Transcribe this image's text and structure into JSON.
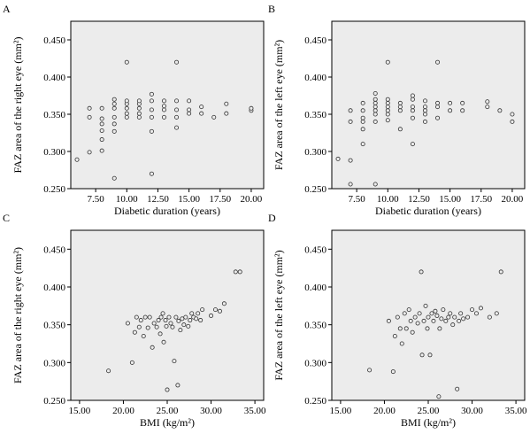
{
  "colors": {
    "plot_bg": "#ececec",
    "axis": "#000000",
    "marker_stroke": "#333333",
    "marker_fill": "#ececec"
  },
  "chart_data": [
    {
      "type": "scatter",
      "panel_label": "A",
      "xlabel": "Diabetic duration (years)",
      "ylabel": "FAZ area of the right eye (mm²)",
      "xlim": [
        5.5,
        21
      ],
      "ylim": [
        0.25,
        0.475
      ],
      "xticks": [
        7.5,
        10,
        12.5,
        15,
        17.5,
        20
      ],
      "xtick_labels": [
        "7.50",
        "10.00",
        "12.50",
        "15.00",
        "17.50",
        "20.00"
      ],
      "yticks": [
        0.25,
        0.3,
        0.35,
        0.4,
        0.45
      ],
      "ytick_labels": [
        "0.250",
        "0.300",
        "0.350",
        "0.400",
        "0.450"
      ],
      "points": [
        [
          6,
          0.289
        ],
        [
          7,
          0.299
        ],
        [
          7,
          0.346
        ],
        [
          7,
          0.358
        ],
        [
          8,
          0.301
        ],
        [
          8,
          0.316
        ],
        [
          8,
          0.328
        ],
        [
          8,
          0.337
        ],
        [
          8,
          0.344
        ],
        [
          8,
          0.358
        ],
        [
          9,
          0.264
        ],
        [
          9,
          0.327
        ],
        [
          9,
          0.337
        ],
        [
          9,
          0.346
        ],
        [
          9,
          0.358
        ],
        [
          9,
          0.364
        ],
        [
          9,
          0.37
        ],
        [
          10,
          0.346
        ],
        [
          10,
          0.351
        ],
        [
          10,
          0.358
        ],
        [
          10,
          0.364
        ],
        [
          10,
          0.368
        ],
        [
          10,
          0.42
        ],
        [
          11,
          0.346
        ],
        [
          11,
          0.351
        ],
        [
          11,
          0.358
        ],
        [
          11,
          0.364
        ],
        [
          11,
          0.368
        ],
        [
          12,
          0.27
        ],
        [
          12,
          0.327
        ],
        [
          12,
          0.346
        ],
        [
          12,
          0.356
        ],
        [
          12,
          0.368
        ],
        [
          12,
          0.377
        ],
        [
          13,
          0.346
        ],
        [
          13,
          0.356
        ],
        [
          13,
          0.361
        ],
        [
          13,
          0.368
        ],
        [
          14,
          0.332
        ],
        [
          14,
          0.346
        ],
        [
          14,
          0.356
        ],
        [
          14,
          0.368
        ],
        [
          14,
          0.42
        ],
        [
          15,
          0.351
        ],
        [
          15,
          0.356
        ],
        [
          15,
          0.368
        ],
        [
          16,
          0.351
        ],
        [
          16,
          0.36
        ],
        [
          17,
          0.346
        ],
        [
          18,
          0.351
        ],
        [
          18,
          0.364
        ],
        [
          20,
          0.355
        ],
        [
          20,
          0.358
        ]
      ]
    },
    {
      "type": "scatter",
      "panel_label": "B",
      "xlabel": "Diabetic duration (years)",
      "ylabel": "FAZ area of the left eye (mm²)",
      "xlim": [
        5.5,
        21
      ],
      "ylim": [
        0.25,
        0.475
      ],
      "xticks": [
        7.5,
        10,
        12.5,
        15,
        17.5,
        20
      ],
      "xtick_labels": [
        "7.50",
        "10.00",
        "12.50",
        "15.00",
        "17.50",
        "20.00"
      ],
      "yticks": [
        0.25,
        0.3,
        0.35,
        0.4,
        0.45
      ],
      "ytick_labels": [
        "0.250",
        "0.300",
        "0.350",
        "0.400",
        "0.450"
      ],
      "points": [
        [
          6,
          0.29
        ],
        [
          7,
          0.256
        ],
        [
          7,
          0.288
        ],
        [
          7,
          0.34
        ],
        [
          7,
          0.355
        ],
        [
          8,
          0.31
        ],
        [
          8,
          0.33
        ],
        [
          8,
          0.34
        ],
        [
          8,
          0.345
        ],
        [
          8,
          0.355
        ],
        [
          8,
          0.365
        ],
        [
          9,
          0.256
        ],
        [
          9,
          0.34
        ],
        [
          9,
          0.35
        ],
        [
          9,
          0.355
        ],
        [
          9,
          0.36
        ],
        [
          9,
          0.365
        ],
        [
          9,
          0.37
        ],
        [
          9,
          0.378
        ],
        [
          10,
          0.342
        ],
        [
          10,
          0.35
        ],
        [
          10,
          0.355
        ],
        [
          10,
          0.36
        ],
        [
          10,
          0.365
        ],
        [
          10,
          0.37
        ],
        [
          10,
          0.42
        ],
        [
          11,
          0.33
        ],
        [
          11,
          0.355
        ],
        [
          11,
          0.36
        ],
        [
          11,
          0.365
        ],
        [
          12,
          0.31
        ],
        [
          12,
          0.345
        ],
        [
          12,
          0.355
        ],
        [
          12,
          0.36
        ],
        [
          12,
          0.37
        ],
        [
          12,
          0.375
        ],
        [
          13,
          0.34
        ],
        [
          13,
          0.35
        ],
        [
          13,
          0.355
        ],
        [
          13,
          0.36
        ],
        [
          13,
          0.368
        ],
        [
          14,
          0.345
        ],
        [
          14,
          0.36
        ],
        [
          14,
          0.365
        ],
        [
          14,
          0.42
        ],
        [
          15,
          0.355
        ],
        [
          15,
          0.365
        ],
        [
          16,
          0.355
        ],
        [
          16,
          0.365
        ],
        [
          18,
          0.36
        ],
        [
          18,
          0.367
        ],
        [
          19,
          0.355
        ],
        [
          20,
          0.34
        ],
        [
          20,
          0.35
        ]
      ]
    },
    {
      "type": "scatter",
      "panel_label": "C",
      "xlabel": "BMI (kg/m²)",
      "ylabel": "FAZ area of the right eye (mm²)",
      "xlim": [
        14,
        36
      ],
      "ylim": [
        0.25,
        0.475
      ],
      "xticks": [
        15,
        20,
        25,
        30,
        35
      ],
      "xtick_labels": [
        "15.00",
        "20.00",
        "25.00",
        "30.00",
        "35.00"
      ],
      "yticks": [
        0.25,
        0.3,
        0.35,
        0.4,
        0.45
      ],
      "ytick_labels": [
        "0.250",
        "0.300",
        "0.350",
        "0.400",
        "0.450"
      ],
      "points": [
        [
          18.3,
          0.289
        ],
        [
          20.5,
          0.352
        ],
        [
          21.0,
          0.3
        ],
        [
          21.3,
          0.34
        ],
        [
          21.5,
          0.36
        ],
        [
          21.8,
          0.347
        ],
        [
          22.0,
          0.356
        ],
        [
          22.3,
          0.335
        ],
        [
          22.5,
          0.36
        ],
        [
          22.8,
          0.346
        ],
        [
          23.0,
          0.36
        ],
        [
          23.3,
          0.32
        ],
        [
          23.5,
          0.352
        ],
        [
          23.8,
          0.347
        ],
        [
          24.0,
          0.356
        ],
        [
          24.2,
          0.338
        ],
        [
          24.3,
          0.36
        ],
        [
          24.5,
          0.365
        ],
        [
          24.6,
          0.327
        ],
        [
          24.8,
          0.356
        ],
        [
          24.9,
          0.348
        ],
        [
          25.0,
          0.264
        ],
        [
          25.2,
          0.36
        ],
        [
          25.4,
          0.352
        ],
        [
          25.6,
          0.347
        ],
        [
          25.8,
          0.302
        ],
        [
          26.0,
          0.36
        ],
        [
          26.2,
          0.27
        ],
        [
          26.3,
          0.355
        ],
        [
          26.5,
          0.343
        ],
        [
          26.7,
          0.358
        ],
        [
          26.9,
          0.35
        ],
        [
          27.1,
          0.36
        ],
        [
          27.4,
          0.348
        ],
        [
          27.6,
          0.356
        ],
        [
          27.8,
          0.365
        ],
        [
          28.0,
          0.36
        ],
        [
          28.3,
          0.358
        ],
        [
          28.5,
          0.365
        ],
        [
          28.8,
          0.356
        ],
        [
          29.0,
          0.37
        ],
        [
          30.0,
          0.362
        ],
        [
          30.5,
          0.37
        ],
        [
          31.0,
          0.368
        ],
        [
          31.5,
          0.378
        ],
        [
          32.8,
          0.42
        ],
        [
          33.3,
          0.42
        ]
      ]
    },
    {
      "type": "scatter",
      "panel_label": "D",
      "xlabel": "BMI (kg/m²)",
      "ylabel": "FAZ area of the left eye (mm²)",
      "xlim": [
        14,
        36
      ],
      "ylim": [
        0.25,
        0.475
      ],
      "xticks": [
        15,
        20,
        25,
        30,
        35
      ],
      "xtick_labels": [
        "15.00",
        "20.00",
        "25.00",
        "30.00",
        "35.00"
      ],
      "yticks": [
        0.25,
        0.3,
        0.35,
        0.4,
        0.45
      ],
      "ytick_labels": [
        "0.250",
        "0.300",
        "0.350",
        "0.400",
        "0.450"
      ],
      "points": [
        [
          18.3,
          0.29
        ],
        [
          20.5,
          0.355
        ],
        [
          21.0,
          0.288
        ],
        [
          21.2,
          0.335
        ],
        [
          21.5,
          0.36
        ],
        [
          21.8,
          0.345
        ],
        [
          22.0,
          0.325
        ],
        [
          22.3,
          0.365
        ],
        [
          22.5,
          0.345
        ],
        [
          22.8,
          0.37
        ],
        [
          23.0,
          0.355
        ],
        [
          23.2,
          0.34
        ],
        [
          23.5,
          0.36
        ],
        [
          23.8,
          0.352
        ],
        [
          24.0,
          0.365
        ],
        [
          24.2,
          0.42
        ],
        [
          24.3,
          0.31
        ],
        [
          24.5,
          0.355
        ],
        [
          24.7,
          0.375
        ],
        [
          24.9,
          0.345
        ],
        [
          25.0,
          0.36
        ],
        [
          25.2,
          0.31
        ],
        [
          25.4,
          0.365
        ],
        [
          25.6,
          0.355
        ],
        [
          25.8,
          0.368
        ],
        [
          26.0,
          0.362
        ],
        [
          26.2,
          0.255
        ],
        [
          26.3,
          0.345
        ],
        [
          26.5,
          0.358
        ],
        [
          26.7,
          0.37
        ],
        [
          27.0,
          0.355
        ],
        [
          27.3,
          0.36
        ],
        [
          27.5,
          0.365
        ],
        [
          27.8,
          0.35
        ],
        [
          28.0,
          0.36
        ],
        [
          28.3,
          0.265
        ],
        [
          28.5,
          0.355
        ],
        [
          28.7,
          0.365
        ],
        [
          29.0,
          0.358
        ],
        [
          29.5,
          0.36
        ],
        [
          30.0,
          0.37
        ],
        [
          30.5,
          0.365
        ],
        [
          31.0,
          0.372
        ],
        [
          32.0,
          0.36
        ],
        [
          32.8,
          0.365
        ],
        [
          33.3,
          0.42
        ]
      ]
    }
  ]
}
